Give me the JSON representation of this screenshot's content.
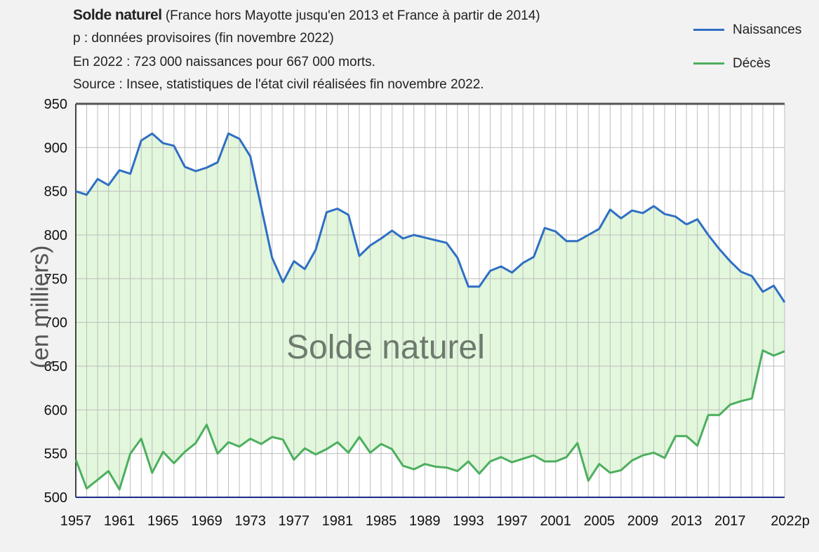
{
  "header": {
    "title_bold": "Solde naturel",
    "title_rest": "(France hors Mayotte jusqu'en 2013 et France à partir de 2014)",
    "line2": "p :  données provisoires    (fin novembre 2022)",
    "line3": "En 2022  : 723 000 naissances pour  667 000 morts.",
    "line4": "Source : Insee, statistiques de l'état civil réalisées fin novembre 2022."
  },
  "overlay_label": "Solde naturel",
  "colors": {
    "births": "#2f6fc4",
    "deaths": "#4caf5e",
    "fill": "#e2f7dc",
    "grid": "#bdbdbd",
    "axis": "#1a2a8a"
  },
  "chart_data": {
    "type": "line",
    "ylabel": "(en milliers)",
    "ylim": [
      500,
      950
    ],
    "yticks": [
      "500",
      "550",
      "600",
      "650",
      "700",
      "750",
      "800",
      "850",
      "900",
      "950"
    ],
    "xlim": [
      1957,
      2022
    ],
    "xticks": [
      "1957",
      "1961",
      "1965",
      "1969",
      "1973",
      "1977",
      "1981",
      "1985",
      "1989",
      "1993",
      "1997",
      "2001",
      "2005",
      "2009",
      "2013",
      "2017",
      "2022p"
    ],
    "grid": true,
    "legend_position": "top-right",
    "fill_between": "Solde naturel",
    "series": [
      {
        "name": "Naissances",
        "x": [
          1957,
          1958,
          1959,
          1960,
          1961,
          1962,
          1963,
          1964,
          1965,
          1966,
          1967,
          1968,
          1969,
          1970,
          1971,
          1972,
          1973,
          1974,
          1975,
          1976,
          1977,
          1978,
          1979,
          1980,
          1981,
          1982,
          1983,
          1984,
          1985,
          1986,
          1987,
          1988,
          1989,
          1990,
          1991,
          1992,
          1993,
          1994,
          1995,
          1996,
          1997,
          1998,
          1999,
          2000,
          2001,
          2002,
          2003,
          2004,
          2005,
          2006,
          2007,
          2008,
          2009,
          2010,
          2011,
          2012,
          2013
        ],
        "values": [
          850,
          846,
          864,
          857,
          874,
          870,
          908,
          916,
          905,
          902,
          878,
          873,
          877,
          883,
          916,
          910,
          890,
          832,
          774,
          746,
          770,
          761,
          783,
          826,
          830,
          823,
          776,
          788,
          796,
          805,
          796,
          800,
          797,
          794,
          791,
          774,
          741,
          741,
          759,
          764,
          757,
          768,
          775,
          808,
          804,
          793,
          793,
          800,
          807,
          829,
          819,
          828,
          825,
          833,
          824,
          821,
          812
        ]
      },
      {
        "name": "Naissances",
        "x": [
          2013,
          2014,
          2015,
          2016,
          2017,
          2018,
          2019,
          2020,
          2021,
          2022
        ],
        "values": [
          812,
          818,
          800,
          784,
          770,
          758,
          753,
          735,
          742,
          723
        ]
      },
      {
        "name": "Décès",
        "x": [
          1957,
          1958,
          1959,
          1960,
          1961,
          1962,
          1963,
          1964,
          1965,
          1966,
          1967,
          1968,
          1969,
          1970,
          1971,
          1972,
          1973,
          1974,
          1975,
          1976,
          1977,
          1978,
          1979,
          1980,
          1981,
          1982,
          1983,
          1984,
          1985,
          1986,
          1987,
          1988,
          1989,
          1990,
          1991,
          1992,
          1993,
          1994,
          1995,
          1996,
          1997,
          1998,
          1999,
          2000,
          2001,
          2002,
          2003,
          2004,
          2005,
          2006,
          2007,
          2008,
          2009,
          2010,
          2011,
          2012,
          2013,
          2014,
          2015,
          2016,
          2017,
          2018,
          2019,
          2020,
          2021,
          2022
        ],
        "values": [
          543,
          510,
          520,
          530,
          509,
          550,
          567,
          528,
          552,
          539,
          552,
          562,
          583,
          550,
          563,
          558,
          567,
          561,
          569,
          566,
          543,
          556,
          549,
          555,
          563,
          551,
          569,
          551,
          561,
          555,
          536,
          532,
          538,
          535,
          534,
          530,
          541,
          527,
          541,
          546,
          540,
          544,
          548,
          541,
          541,
          546,
          562,
          519,
          538,
          528,
          531,
          542,
          548,
          551,
          545,
          570,
          570,
          559,
          594,
          594,
          606,
          610,
          613,
          668,
          662,
          667
        ]
      }
    ]
  }
}
